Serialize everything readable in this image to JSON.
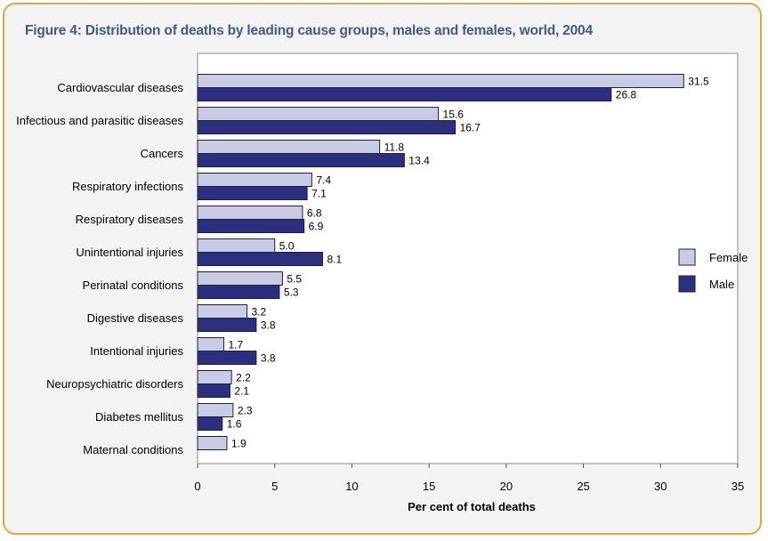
{
  "chart_data": {
    "type": "bar",
    "orientation": "horizontal",
    "title": "Figure 4: Distribution of deaths by leading cause groups, males and females, world, 2004",
    "xlabel": "Per cent of total deaths",
    "ylabel": "",
    "xlim": [
      0,
      35
    ],
    "xticks": [
      0,
      5,
      10,
      15,
      20,
      25,
      30,
      35
    ],
    "grid": false,
    "legend_position": "right",
    "categories": [
      "Cardiovascular diseases",
      "Infectious and parasitic diseases",
      "Cancers",
      "Respiratory infections",
      "Respiratory diseases",
      "Unintentional injuries",
      "Perinatal conditions",
      "Digestive diseases",
      "Intentional injuries",
      "Neuropsychiatric disorders",
      "Diabetes mellitus",
      "Maternal conditions"
    ],
    "series": [
      {
        "name": "Female",
        "color": "#c8cce4",
        "values": [
          31.5,
          15.6,
          11.8,
          7.4,
          6.8,
          5.0,
          5.5,
          3.2,
          1.7,
          2.2,
          2.3,
          1.9
        ],
        "labels": [
          "31.5",
          "15.6",
          "11.8",
          "7.4",
          "6.8",
          "5.0",
          "5.5",
          "3.2",
          "1.7",
          "2.2",
          "2.3",
          "1.9"
        ]
      },
      {
        "name": "Male",
        "color": "#2b2f7d",
        "values": [
          26.8,
          16.7,
          13.4,
          7.1,
          6.9,
          8.1,
          5.3,
          3.8,
          3.8,
          2.1,
          1.6,
          null
        ],
        "labels": [
          "26.8",
          "16.7",
          "13.4",
          "7.1",
          "6.9",
          "8.1",
          "5.3",
          "3.8",
          "3.8",
          "2.1",
          "1.6",
          null
        ]
      }
    ]
  }
}
